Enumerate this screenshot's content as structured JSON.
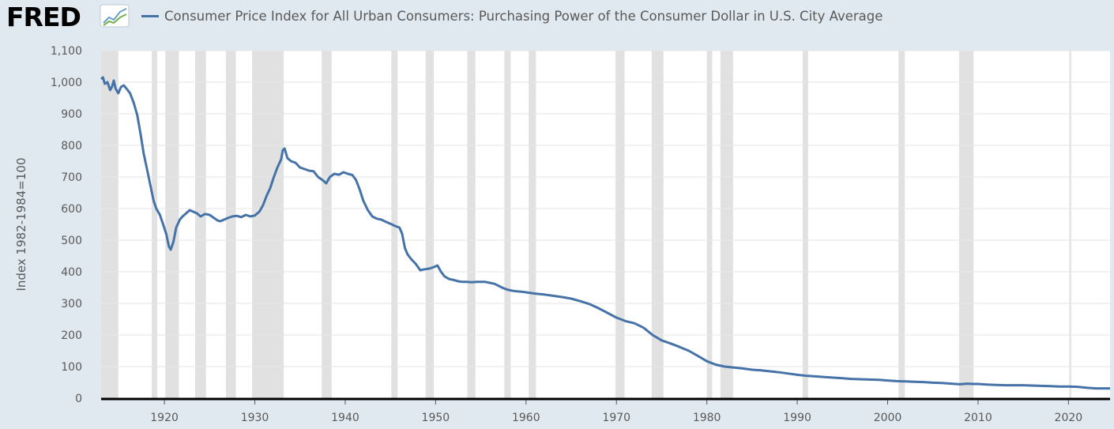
{
  "header": {
    "logo_text": "FRED",
    "logo_icon": "fred-chart-logo-icon",
    "legend_label": "Consumer Price Index for All Urban Consumers: Purchasing Power of the Consumer Dollar in U.S. City Average"
  },
  "colors": {
    "series": "#4572a7",
    "recession": "#e1e1e1",
    "background": "#e1e9f0",
    "plot_background": "#ffffff",
    "grid": "#e6e6e6"
  },
  "chart_data": {
    "type": "line",
    "title": "",
    "xlabel": "",
    "ylabel": "Index 1982-1984=100",
    "xlim": [
      1913,
      2024.6
    ],
    "ylim": [
      0,
      1100
    ],
    "y_ticks": [
      0,
      100,
      200,
      300,
      400,
      500,
      600,
      700,
      800,
      900,
      "1,000",
      "1,100"
    ],
    "x_ticks": [
      1920,
      1930,
      1940,
      1950,
      1960,
      1970,
      1980,
      1990,
      2000,
      2010,
      2020
    ],
    "grid": "horizontal",
    "recessions": [
      [
        1913.0,
        1914.9
      ],
      [
        1918.6,
        1919.2
      ],
      [
        1920.1,
        1921.6
      ],
      [
        1923.4,
        1924.6
      ],
      [
        1926.8,
        1927.9
      ],
      [
        1929.7,
        1933.2
      ],
      [
        1937.4,
        1938.5
      ],
      [
        1945.1,
        1945.8
      ],
      [
        1948.9,
        1949.8
      ],
      [
        1953.5,
        1954.4
      ],
      [
        1957.6,
        1958.3
      ],
      [
        1960.3,
        1961.1
      ],
      [
        1969.9,
        1970.9
      ],
      [
        1973.9,
        1975.2
      ],
      [
        1980.0,
        1980.6
      ],
      [
        1981.5,
        1982.9
      ],
      [
        1990.6,
        1991.2
      ],
      [
        2001.2,
        2001.9
      ],
      [
        2007.9,
        2009.5
      ],
      [
        2020.1,
        2020.3
      ]
    ],
    "series": [
      {
        "name": "Consumer Price Index for All Urban Consumers: Purchasing Power of the Consumer Dollar in U.S. City Average",
        "points": [
          [
            1913.0,
            1010
          ],
          [
            1913.2,
            1015
          ],
          [
            1913.4,
            995
          ],
          [
            1913.7,
            1000
          ],
          [
            1914.0,
            975
          ],
          [
            1914.2,
            985
          ],
          [
            1914.4,
            1005
          ],
          [
            1914.6,
            980
          ],
          [
            1914.9,
            965
          ],
          [
            1915.2,
            985
          ],
          [
            1915.5,
            990
          ],
          [
            1915.8,
            980
          ],
          [
            1916.2,
            965
          ],
          [
            1916.6,
            935
          ],
          [
            1917.0,
            895
          ],
          [
            1917.4,
            830
          ],
          [
            1917.7,
            775
          ],
          [
            1918.0,
            735
          ],
          [
            1918.4,
            680
          ],
          [
            1918.8,
            625
          ],
          [
            1919.1,
            600
          ],
          [
            1919.5,
            580
          ],
          [
            1919.8,
            555
          ],
          [
            1920.2,
            520
          ],
          [
            1920.5,
            480
          ],
          [
            1920.7,
            470
          ],
          [
            1921.0,
            495
          ],
          [
            1921.3,
            540
          ],
          [
            1921.7,
            565
          ],
          [
            1922.0,
            575
          ],
          [
            1922.4,
            585
          ],
          [
            1922.8,
            595
          ],
          [
            1923.2,
            590
          ],
          [
            1923.6,
            585
          ],
          [
            1924.0,
            575
          ],
          [
            1924.5,
            583
          ],
          [
            1925.0,
            580
          ],
          [
            1925.5,
            570
          ],
          [
            1925.9,
            562
          ],
          [
            1926.2,
            560
          ],
          [
            1926.6,
            565
          ],
          [
            1927.0,
            570
          ],
          [
            1927.5,
            575
          ],
          [
            1928.0,
            577
          ],
          [
            1928.5,
            573
          ],
          [
            1929.0,
            580
          ],
          [
            1929.5,
            575
          ],
          [
            1930.0,
            578
          ],
          [
            1930.5,
            590
          ],
          [
            1930.9,
            610
          ],
          [
            1931.3,
            640
          ],
          [
            1931.7,
            665
          ],
          [
            1932.1,
            700
          ],
          [
            1932.5,
            730
          ],
          [
            1932.9,
            755
          ],
          [
            1933.1,
            785
          ],
          [
            1933.3,
            790
          ],
          [
            1933.6,
            760
          ],
          [
            1934.0,
            750
          ],
          [
            1934.5,
            745
          ],
          [
            1935.0,
            730
          ],
          [
            1935.5,
            725
          ],
          [
            1936.0,
            720
          ],
          [
            1936.5,
            718
          ],
          [
            1937.0,
            700
          ],
          [
            1937.5,
            690
          ],
          [
            1937.9,
            680
          ],
          [
            1938.3,
            700
          ],
          [
            1938.8,
            710
          ],
          [
            1939.3,
            707
          ],
          [
            1939.8,
            715
          ],
          [
            1940.3,
            710
          ],
          [
            1940.8,
            706
          ],
          [
            1941.2,
            690
          ],
          [
            1941.6,
            660
          ],
          [
            1942.0,
            625
          ],
          [
            1942.5,
            595
          ],
          [
            1943.0,
            575
          ],
          [
            1943.5,
            568
          ],
          [
            1944.0,
            565
          ],
          [
            1944.5,
            558
          ],
          [
            1945.0,
            552
          ],
          [
            1945.5,
            545
          ],
          [
            1946.0,
            540
          ],
          [
            1946.3,
            520
          ],
          [
            1946.6,
            475
          ],
          [
            1946.9,
            455
          ],
          [
            1947.3,
            440
          ],
          [
            1947.8,
            425
          ],
          [
            1948.3,
            405
          ],
          [
            1948.8,
            408
          ],
          [
            1949.3,
            410
          ],
          [
            1949.8,
            415
          ],
          [
            1950.2,
            420
          ],
          [
            1950.6,
            400
          ],
          [
            1951.0,
            385
          ],
          [
            1951.5,
            377
          ],
          [
            1952.0,
            374
          ],
          [
            1952.5,
            370
          ],
          [
            1953.0,
            368
          ],
          [
            1953.5,
            368
          ],
          [
            1954.0,
            367
          ],
          [
            1954.5,
            368
          ],
          [
            1955.0,
            368
          ],
          [
            1955.5,
            368
          ],
          [
            1956.0,
            365
          ],
          [
            1956.5,
            362
          ],
          [
            1957.0,
            355
          ],
          [
            1957.5,
            348
          ],
          [
            1958.0,
            343
          ],
          [
            1958.5,
            340
          ],
          [
            1959.0,
            338
          ],
          [
            1959.5,
            337
          ],
          [
            1960.0,
            335
          ],
          [
            1961.0,
            331
          ],
          [
            1962.0,
            328
          ],
          [
            1963.0,
            324
          ],
          [
            1964.0,
            320
          ],
          [
            1965.0,
            315
          ],
          [
            1966.0,
            307
          ],
          [
            1967.0,
            298
          ],
          [
            1968.0,
            285
          ],
          [
            1969.0,
            270
          ],
          [
            1970.0,
            255
          ],
          [
            1971.0,
            244
          ],
          [
            1972.0,
            237
          ],
          [
            1973.0,
            223
          ],
          [
            1974.0,
            200
          ],
          [
            1975.0,
            183
          ],
          [
            1976.0,
            173
          ],
          [
            1977.0,
            162
          ],
          [
            1978.0,
            150
          ],
          [
            1979.0,
            134
          ],
          [
            1980.0,
            117
          ],
          [
            1981.0,
            106
          ],
          [
            1982.0,
            100
          ],
          [
            1983.0,
            97
          ],
          [
            1984.0,
            94
          ],
          [
            1985.0,
            90
          ],
          [
            1986.0,
            88
          ],
          [
            1987.0,
            85
          ],
          [
            1988.0,
            82
          ],
          [
            1989.0,
            78
          ],
          [
            1990.0,
            74
          ],
          [
            1991.0,
            71
          ],
          [
            1992.0,
            69
          ],
          [
            1993.0,
            67
          ],
          [
            1994.0,
            65
          ],
          [
            1995.0,
            63
          ],
          [
            1996.0,
            61
          ],
          [
            1997.0,
            60
          ],
          [
            1998.0,
            59
          ],
          [
            1999.0,
            58
          ],
          [
            2000.0,
            56
          ],
          [
            2001.0,
            54
          ],
          [
            2002.0,
            53
          ],
          [
            2003.0,
            52
          ],
          [
            2004.0,
            51
          ],
          [
            2005.0,
            49
          ],
          [
            2006.0,
            48
          ],
          [
            2007.0,
            46
          ],
          [
            2008.0,
            44
          ],
          [
            2008.8,
            46
          ],
          [
            2009.5,
            45
          ],
          [
            2010.0,
            45
          ],
          [
            2011.0,
            43
          ],
          [
            2012.0,
            42
          ],
          [
            2013.0,
            41
          ],
          [
            2014.0,
            41
          ],
          [
            2015.0,
            41
          ],
          [
            2016.0,
            40
          ],
          [
            2017.0,
            39
          ],
          [
            2018.0,
            38
          ],
          [
            2019.0,
            37
          ],
          [
            2020.0,
            37
          ],
          [
            2021.0,
            36
          ],
          [
            2022.0,
            33
          ],
          [
            2023.0,
            31
          ],
          [
            2024.6,
            31
          ]
        ]
      }
    ]
  }
}
